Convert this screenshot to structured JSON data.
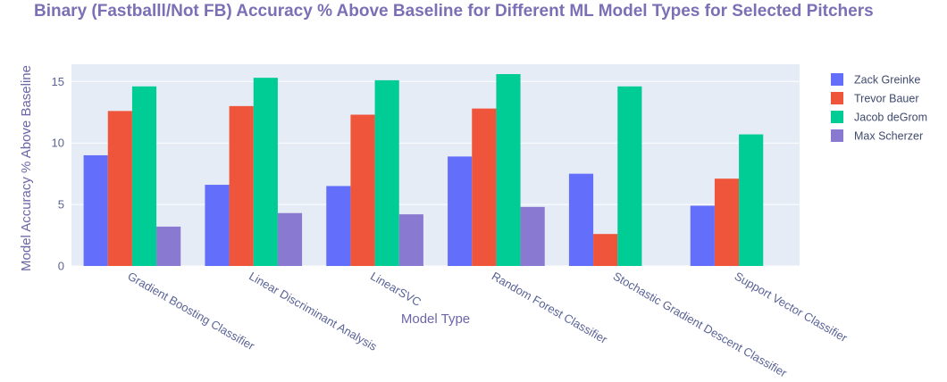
{
  "colors": {
    "plot_bg": "#e5ecf6",
    "grid": "#ffffff",
    "title": "#7b6fb5",
    "axis_text": "#5a6396"
  },
  "chart_data": {
    "type": "bar",
    "title": "Binary (Fastballl/Not FB) Accuracy % Above Baseline for Different ML Model Types for Selected Pitchers",
    "xlabel": "Model Type",
    "ylabel": "Model Accuracy % Above Baseline",
    "ylim": [
      0,
      16.4
    ],
    "yticks": [
      0,
      5,
      10,
      15
    ],
    "grid": true,
    "legend_position": "right",
    "categories": [
      "Gradient Boosting Classifier",
      "Linear Discriminant Analysis",
      "LinearSVC",
      "Random Forest Classifier",
      "Stochastic Gradient Descent Classifier",
      "Support Vector Classifier"
    ],
    "series": [
      {
        "name": "Zack Greinke",
        "color": "#636efa",
        "values": [
          9.0,
          6.6,
          6.5,
          8.9,
          7.5,
          4.9
        ]
      },
      {
        "name": "Trevor Bauer",
        "color": "#ef553b",
        "values": [
          12.6,
          13.0,
          12.3,
          12.8,
          2.6,
          7.1
        ]
      },
      {
        "name": "Jacob deGrom",
        "color": "#00cc96",
        "values": [
          14.6,
          15.3,
          15.1,
          15.6,
          14.6,
          10.7
        ]
      },
      {
        "name": "Max Scherzer",
        "color": "#8a79d1",
        "values": [
          3.2,
          4.3,
          4.2,
          4.8,
          0.0,
          0.0
        ]
      }
    ]
  }
}
